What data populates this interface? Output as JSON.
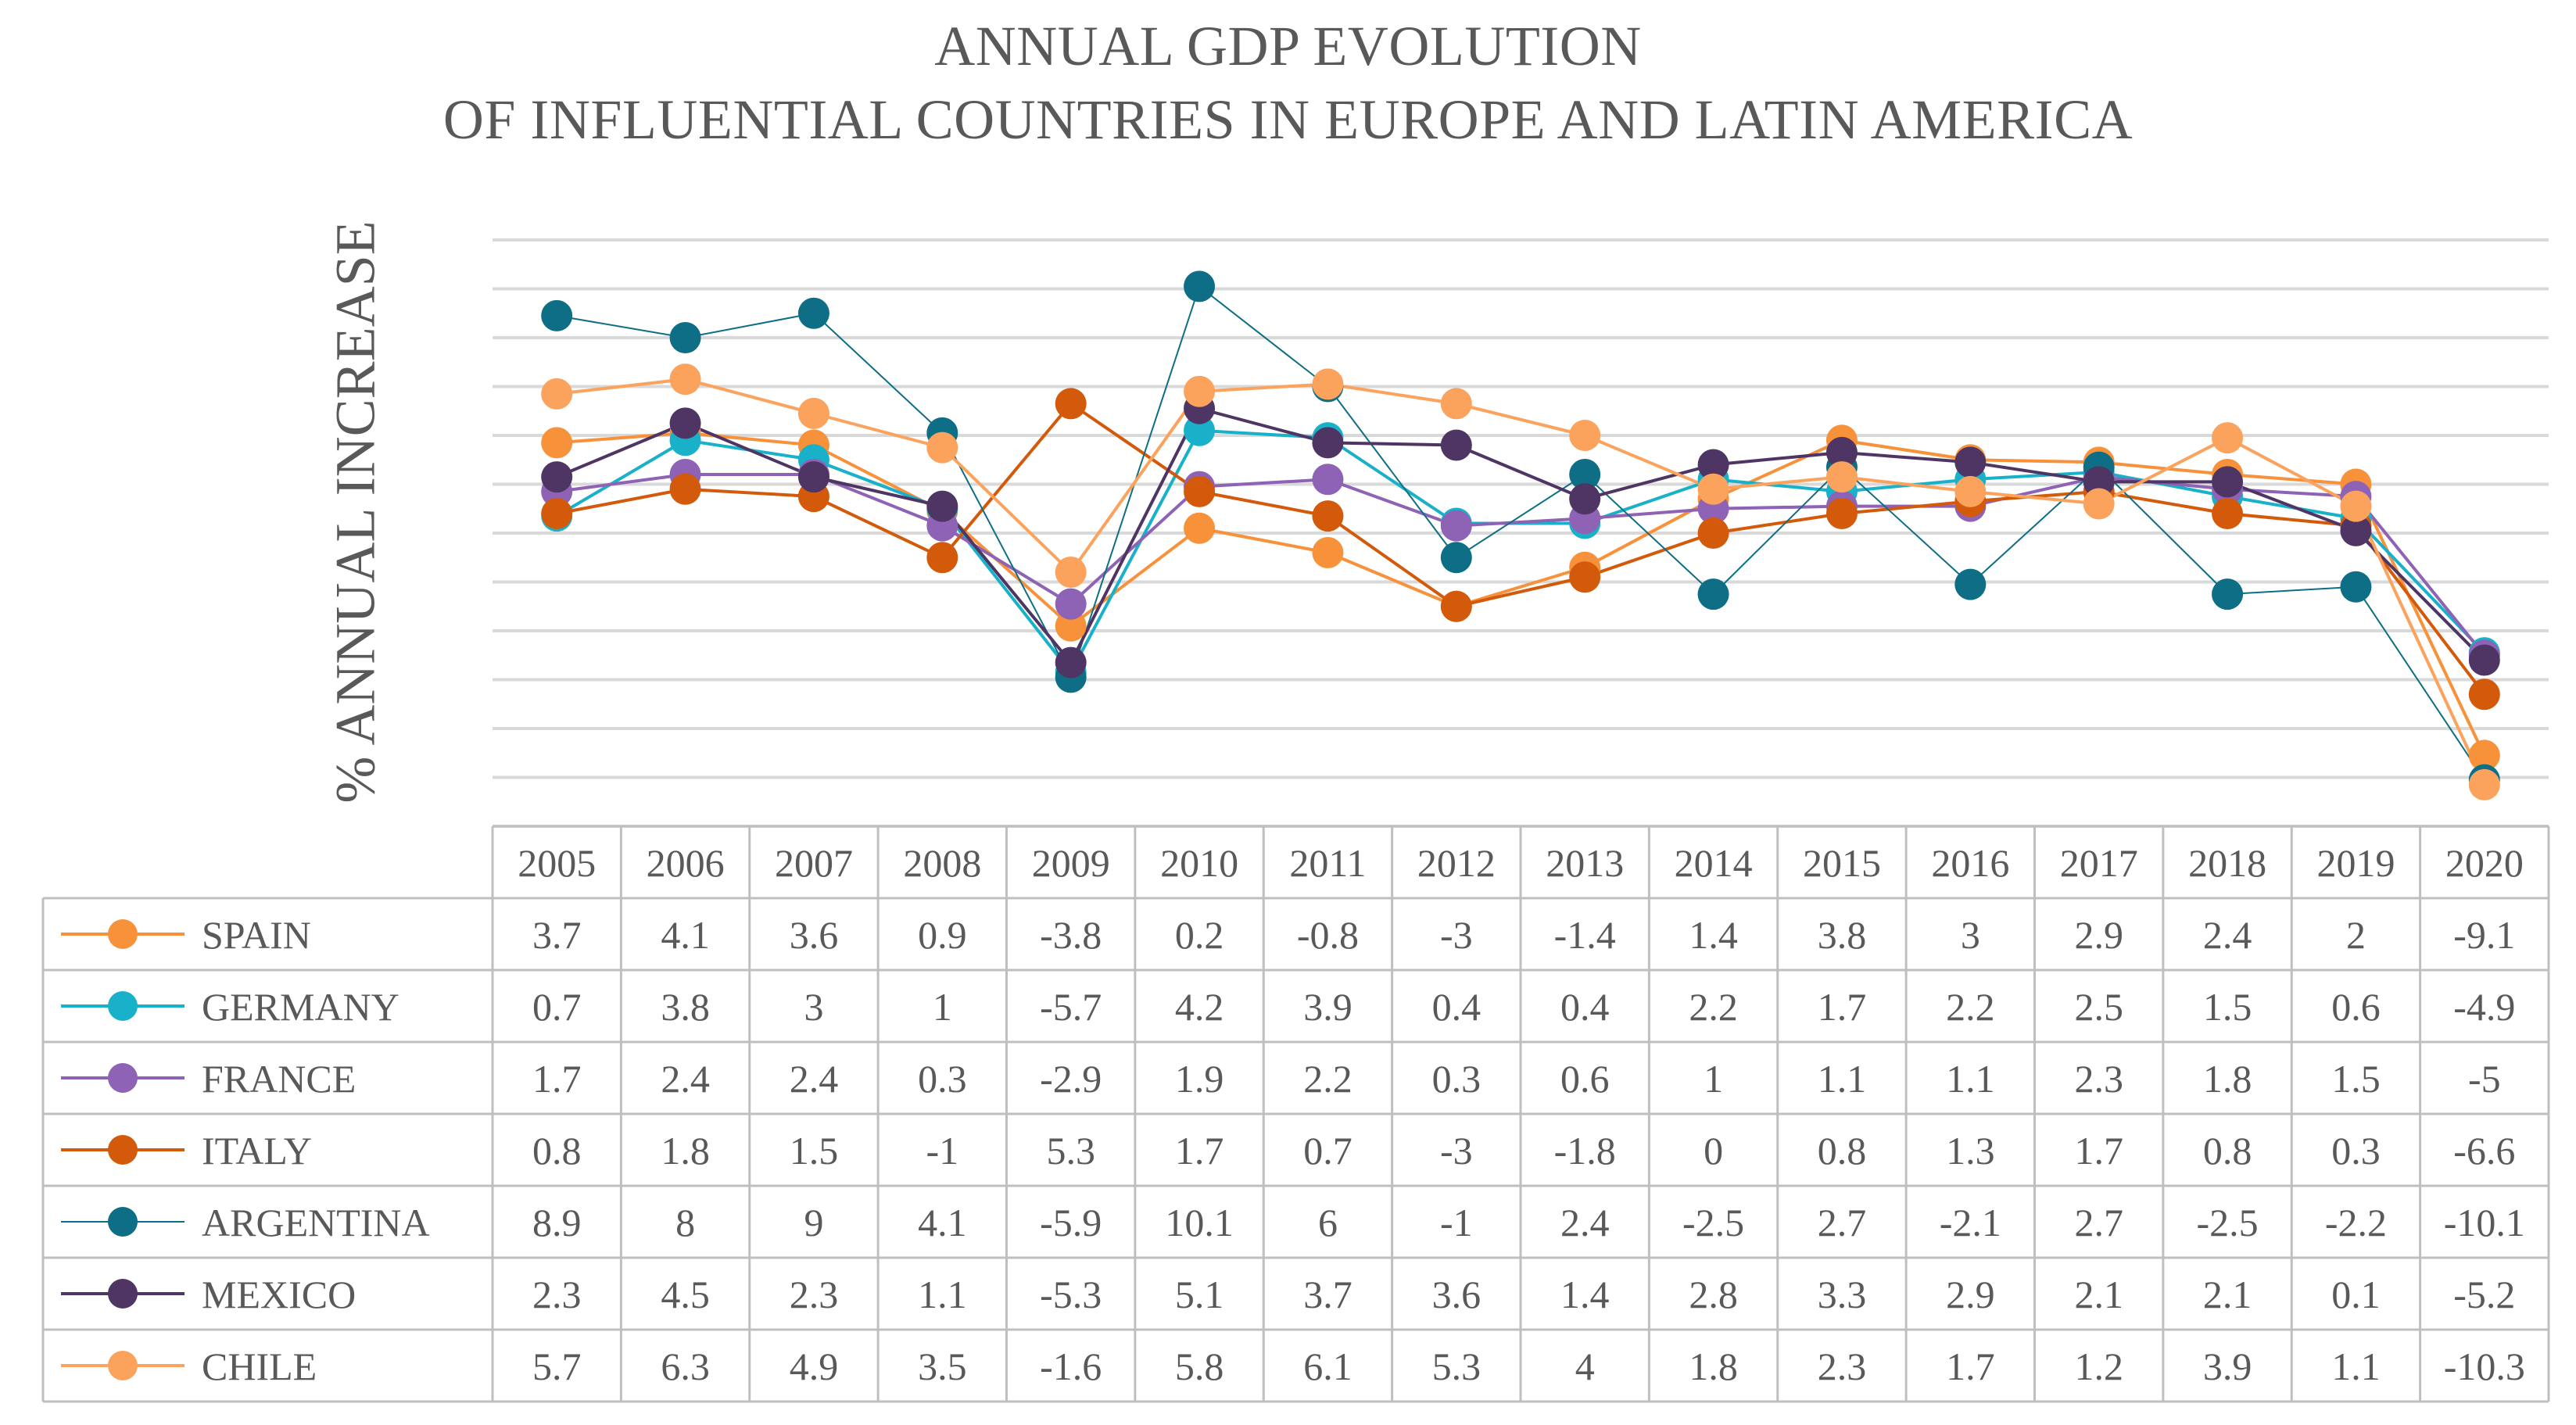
{
  "chart_data": {
    "type": "line",
    "title": "ANNUAL GDP EVOLUTION",
    "subtitle": "OF INFLUENTIAL COUNTRIES IN EUROPE AND LATIN AMERICA",
    "xlabel": "",
    "ylabel": "% ANNUAL INCREASE",
    "ylim": [
      -12,
      12
    ],
    "grid": true,
    "legend": "data-table",
    "categories": [
      "2005",
      "2006",
      "2007",
      "2008",
      "2009",
      "2010",
      "2011",
      "2012",
      "2013",
      "2014",
      "2015",
      "2016",
      "2017",
      "2018",
      "2019",
      "2020"
    ],
    "series": [
      {
        "name": "SPAIN",
        "color": "#f7913a",
        "values": [
          3.7,
          4.1,
          3.6,
          0.9,
          -3.8,
          0.2,
          -0.8,
          -3,
          -1.4,
          1.4,
          3.8,
          3,
          2.9,
          2.4,
          2,
          -9.1
        ]
      },
      {
        "name": "GERMANY",
        "color": "#19b1c9",
        "values": [
          0.7,
          3.8,
          3,
          1,
          -5.7,
          4.2,
          3.9,
          0.4,
          0.4,
          2.2,
          1.7,
          2.2,
          2.5,
          1.5,
          0.6,
          -4.9
        ]
      },
      {
        "name": "FRANCE",
        "color": "#8e62b4",
        "values": [
          1.7,
          2.4,
          2.4,
          0.3,
          -2.9,
          1.9,
          2.2,
          0.3,
          0.6,
          1,
          1.1,
          1.1,
          2.3,
          1.8,
          1.5,
          -5
        ]
      },
      {
        "name": "ITALY",
        "color": "#d35a0a",
        "values": [
          0.8,
          1.8,
          1.5,
          -1,
          5.3,
          1.7,
          0.7,
          -3,
          -1.8,
          0,
          0.8,
          1.3,
          1.7,
          0.8,
          0.3,
          -6.6
        ]
      },
      {
        "name": "ARGENTINA",
        "color": "#0e6e85",
        "values": [
          8.9,
          8,
          9,
          4.1,
          -5.9,
          10.1,
          6,
          -1,
          2.4,
          -2.5,
          2.7,
          -2.1,
          2.7,
          -2.5,
          -2.2,
          -10.1
        ]
      },
      {
        "name": "MEXICO",
        "color": "#4f3563",
        "values": [
          2.3,
          4.5,
          2.3,
          1.1,
          -5.3,
          5.1,
          3.7,
          3.6,
          1.4,
          2.8,
          3.3,
          2.9,
          2.1,
          2.1,
          0.1,
          -5.2
        ]
      },
      {
        "name": "CHILE",
        "color": "#fba25c",
        "values": [
          5.7,
          6.3,
          4.9,
          3.5,
          -1.6,
          5.8,
          6.1,
          5.3,
          4,
          1.8,
          2.3,
          1.7,
          1.2,
          3.9,
          1.1,
          -10.3
        ]
      }
    ]
  }
}
